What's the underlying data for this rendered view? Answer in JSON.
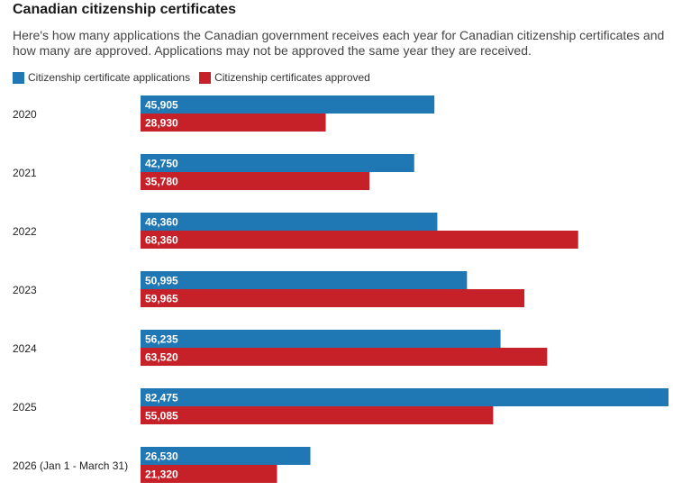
{
  "chart_data": {
    "type": "bar",
    "orientation": "horizontal",
    "title": "Canadian citizenship certificates",
    "subtitle": "Here's how many applications the Canadian government receives each year for Canadian citizenship certificates and how many are approved. Applications may not be approved the same year they are received.",
    "categories": [
      "2020",
      "2021",
      "2022",
      "2023",
      "2024",
      "2025",
      "2026 (Jan 1 - March 31)"
    ],
    "series": [
      {
        "name": "Citizenship certificate applications",
        "color": "#1f77b4",
        "values": [
          45905,
          42750,
          46360,
          50995,
          56235,
          82475,
          26530
        ],
        "labels": [
          "45,905",
          "42,750",
          "46,360",
          "50,995",
          "56,235",
          "82,475",
          "26,530"
        ]
      },
      {
        "name": "Citizenship certificates approved",
        "color": "#c62128",
        "values": [
          28930,
          35780,
          68360,
          59965,
          63520,
          55085,
          21320
        ],
        "labels": [
          "28,930",
          "35,780",
          "68,360",
          "59,965",
          "63,520",
          "55,085",
          "21,320"
        ]
      }
    ],
    "xlim": [
      0,
      82475
    ],
    "grid": false,
    "legend_position": "top-left"
  }
}
